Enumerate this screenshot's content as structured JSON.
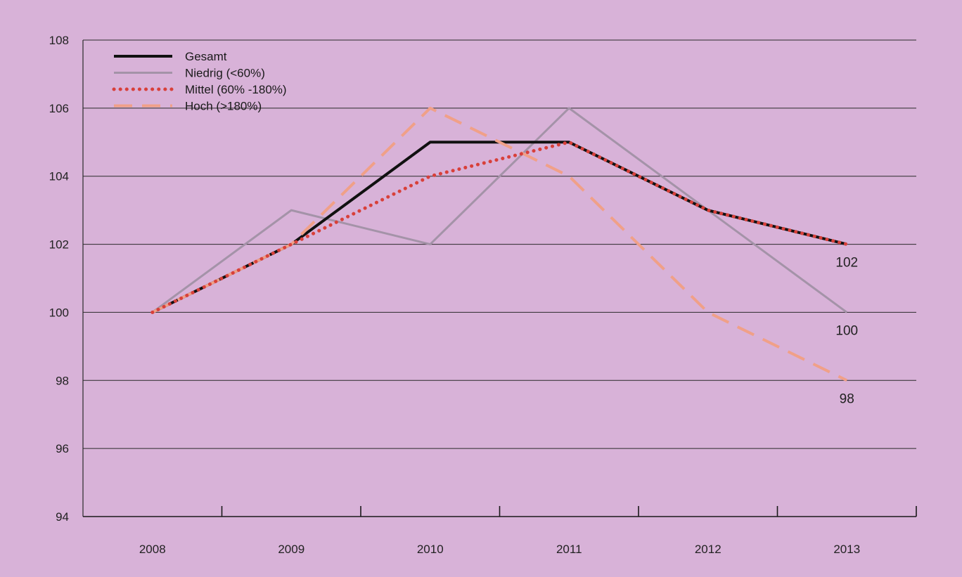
{
  "chart_data": {
    "type": "line",
    "title": "",
    "xlabel": "",
    "ylabel": "",
    "categories": [
      "2008",
      "2009",
      "2010",
      "2011",
      "2012",
      "2013"
    ],
    "ylim": [
      94,
      108
    ],
    "yticks": [
      94,
      96,
      98,
      100,
      102,
      104,
      106,
      108
    ],
    "grid": true,
    "legend_position": "top-left",
    "series": [
      {
        "name": "Gesamt",
        "values": [
          100,
          102,
          105,
          105,
          103,
          102
        ],
        "color": "#111111",
        "style": "solid"
      },
      {
        "name": "Niedrig (<60%)",
        "values": [
          100,
          103,
          102,
          106,
          103,
          100
        ],
        "color": "#a493a8",
        "style": "solid"
      },
      {
        "name": "Mittel (60% -180%)",
        "values": [
          100,
          102,
          104,
          105,
          103,
          102
        ],
        "color": "#d8403a",
        "style": "dotted"
      },
      {
        "name": "Hoch (>180%)",
        "values": [
          100,
          102,
          106,
          104,
          100,
          98
        ],
        "color": "#f0a088",
        "style": "dashed"
      }
    ],
    "end_labels": [
      {
        "text": "102",
        "value": 102
      },
      {
        "text": "100",
        "value": 100
      },
      {
        "text": "98",
        "value": 98
      }
    ]
  }
}
